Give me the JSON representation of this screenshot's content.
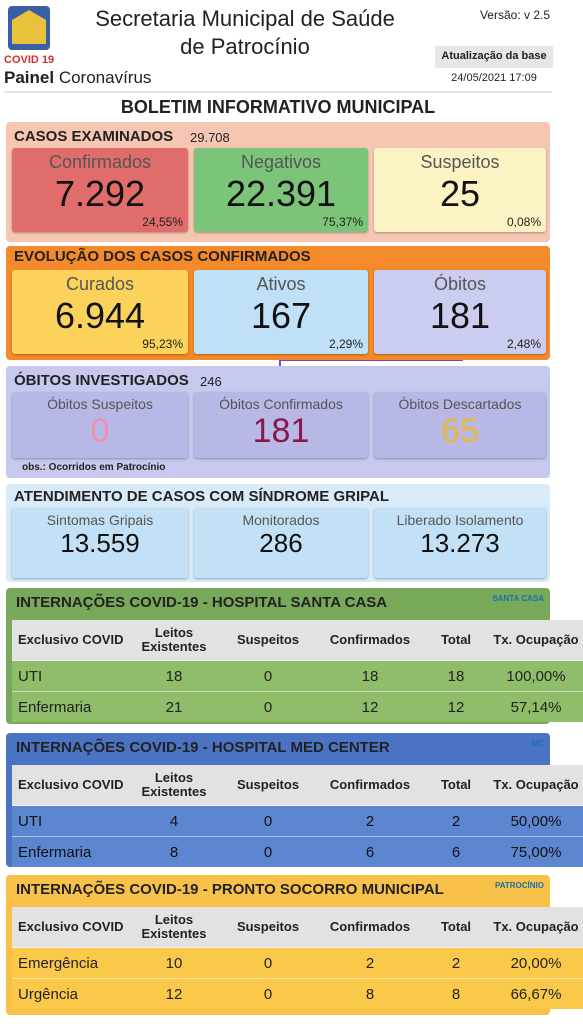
{
  "header": {
    "logo_tag": "COVID 19",
    "panel_bold": "Painel",
    "panel_rest": "Coronavírus",
    "title_line1": "Secretaria Municipal de Saúde",
    "title_line2": "de Patrocínio",
    "version": "Versão: v 2.5",
    "update_label": "Atualização da base",
    "update_date": "24/05/2021 17:09"
  },
  "bulletin_title": "BOLETIM INFORMATIVO MUNICIPAL",
  "casos_examinados": {
    "title": "CASOS EXAMINADOS",
    "total": "29.708",
    "cards": [
      {
        "label": "Confirmados",
        "value": "7.292",
        "pct": "24,55%"
      },
      {
        "label": "Negativos",
        "value": "22.391",
        "pct": "75,37%"
      },
      {
        "label": "Suspeitos",
        "value": "25",
        "pct": "0,08%"
      }
    ]
  },
  "evolucao": {
    "title": "EVOLUÇÃO DOS CASOS CONFIRMADOS",
    "cards": [
      {
        "label": "Curados",
        "value": "6.944",
        "pct": "95,23%"
      },
      {
        "label": "Ativos",
        "value": "167",
        "pct": "2,29%"
      },
      {
        "label": "Óbitos",
        "value": "181",
        "pct": "2,48%"
      }
    ]
  },
  "obitos_investigados": {
    "title": "ÓBITOS INVESTIGADOS",
    "total": "246",
    "cards": [
      {
        "label": "Óbitos Suspeitos",
        "value": "0"
      },
      {
        "label": "Óbitos Confirmados",
        "value": "181"
      },
      {
        "label": "Óbitos Descartados",
        "value": "65"
      }
    ],
    "note": "obs.: Ocorridos em Patrocínio"
  },
  "sindrome_gripal": {
    "title": "ATENDIMENTO DE CASOS COM SÍNDROME GRIPAL",
    "cards": [
      {
        "label": "Sintomas Gripais",
        "value": "13.559"
      },
      {
        "label": "Monitorados",
        "value": "286"
      },
      {
        "label": "Liberado Isolamento",
        "value": "13.273"
      }
    ]
  },
  "hospitals": [
    {
      "title": "INTERNAÇÕES COVID-19 - HOSPITAL SANTA CASA",
      "logo": "SANTA CASA",
      "columns": [
        "Exclusivo COVID",
        "Leitos Existentes",
        "Suspeitos",
        "Confirmados",
        "Total",
        "Tx. Ocupação"
      ],
      "rows": [
        [
          "UTI",
          "18",
          "0",
          "18",
          "18",
          "100,00%"
        ],
        [
          "Enfermaria",
          "21",
          "0",
          "12",
          "12",
          "57,14%"
        ]
      ]
    },
    {
      "title": "INTERNAÇÕES COVID-19 - HOSPITAL MED CENTER",
      "logo": "MC",
      "columns": [
        "Exclusivo COVID",
        "Leitos Existentes",
        "Suspeitos",
        "Confirmados",
        "Total",
        "Tx. Ocupação"
      ],
      "rows": [
        [
          "UTI",
          "4",
          "0",
          "2",
          "2",
          "50,00%"
        ],
        [
          "Enfermaria",
          "8",
          "0",
          "6",
          "6",
          "75,00%"
        ]
      ]
    },
    {
      "title": "INTERNAÇÕES COVID-19 - PRONTO SOCORRO MUNICIPAL",
      "logo": "PATROCÍNIO",
      "columns": [
        "Exclusivo COVID",
        "Leitos Existentes",
        "Suspeitos",
        "Confirmados",
        "Total",
        "Tx. Ocupação"
      ],
      "rows": [
        [
          "Emergência",
          "10",
          "0",
          "2",
          "2",
          "20,00%"
        ],
        [
          "Urgência",
          "12",
          "0",
          "8",
          "8",
          "66,67%"
        ]
      ]
    }
  ]
}
